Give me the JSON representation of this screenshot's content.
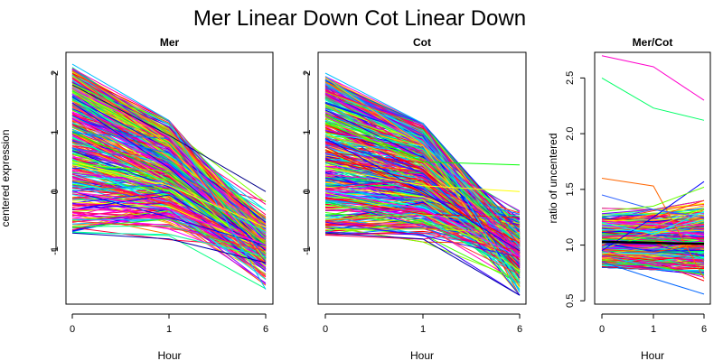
{
  "title": "Mer Linear Down Cot Linear Down",
  "chart_data": [
    {
      "type": "line",
      "title": "Mer",
      "xlabel": "Hour",
      "ylabel": "centered expression",
      "x": [
        0,
        1,
        6
      ],
      "x_tick_labels": [
        "0",
        "1",
        "6"
      ],
      "y_ticks": [
        -1,
        0,
        1,
        2
      ],
      "ylim": [
        -1.9,
        2.35
      ],
      "grid": false,
      "series_count_estimate": 400,
      "series_summary": {
        "hour_0_range": [
          -0.7,
          2.15
        ],
        "hour_1_range": [
          -0.95,
          1.2
        ],
        "hour_6_range": [
          -1.65,
          0.0
        ]
      },
      "example_series": [
        {
          "values": [
            2.15,
            1.2,
            -1.65
          ],
          "color": "#00bfff"
        },
        {
          "values": [
            1.9,
            0.9,
            -1.2
          ],
          "color": "#ff0066"
        },
        {
          "values": [
            1.5,
            0.4,
            -1.0
          ],
          "color": "#0000ff"
        },
        {
          "values": [
            1.0,
            0.3,
            -0.9
          ],
          "color": "#00ff00"
        },
        {
          "values": [
            0.5,
            0.1,
            -0.6
          ],
          "color": "#ffff00"
        },
        {
          "values": [
            0.0,
            -0.3,
            -0.9
          ],
          "color": "#ff00ff"
        },
        {
          "values": [
            -0.5,
            -0.6,
            -1.0
          ],
          "color": "#ff3333"
        },
        {
          "values": [
            -0.7,
            -0.8,
            -1.2
          ],
          "color": "#0000aa"
        },
        {
          "values": [
            1.8,
            0.95,
            0.0
          ],
          "color": "#000088"
        }
      ]
    },
    {
      "type": "line",
      "title": "Cot",
      "xlabel": "Hour",
      "ylabel": "",
      "x": [
        0,
        1,
        6
      ],
      "x_tick_labels": [
        "0",
        "1",
        "6"
      ],
      "y_ticks": [
        -1,
        0,
        1,
        2
      ],
      "ylim": [
        -1.9,
        2.35
      ],
      "grid": false,
      "series_count_estimate": 400,
      "series_summary": {
        "hour_0_range": [
          -0.75,
          2.0
        ],
        "hour_1_range": [
          -0.85,
          1.15
        ],
        "hour_6_range": [
          -1.75,
          0.45
        ]
      },
      "example_series": [
        {
          "values": [
            2.0,
            1.15,
            -1.7
          ],
          "color": "#00bfff"
        },
        {
          "values": [
            1.7,
            1.1,
            -0.9
          ],
          "color": "#ff0066"
        },
        {
          "values": [
            1.3,
            0.5,
            0.45
          ],
          "color": "#00ff00"
        },
        {
          "values": [
            0.9,
            0.0,
            -1.0
          ],
          "color": "#0000ff"
        },
        {
          "values": [
            0.4,
            0.1,
            0.0
          ],
          "color": "#ffff00"
        },
        {
          "values": [
            0.0,
            -0.3,
            -1.1
          ],
          "color": "#ff00ff"
        },
        {
          "values": [
            -0.5,
            -0.6,
            -1.4
          ],
          "color": "#ff3333"
        },
        {
          "values": [
            -0.7,
            -0.8,
            -1.75
          ],
          "color": "#0000aa"
        }
      ]
    },
    {
      "type": "line",
      "title": "Mer/Cot",
      "xlabel": "Hour",
      "ylabel": "ratio of uncentered",
      "x": [
        0,
        1,
        6
      ],
      "x_tick_labels": [
        "0",
        "1",
        "6"
      ],
      "y_ticks": [
        0.5,
        1.0,
        1.5,
        2.0,
        2.5
      ],
      "y_tick_labels": [
        "0.5",
        "1.0",
        "1.5",
        "2.0",
        "2.5"
      ],
      "ylim": [
        0.47,
        2.73
      ],
      "grid": false,
      "series_count_estimate": 400,
      "mean_line": {
        "values": [
          1.03,
          1.02,
          1.01
        ],
        "color": "#000000"
      },
      "example_series": [
        {
          "values": [
            2.7,
            2.6,
            2.3
          ],
          "color": "#ff00cc"
        },
        {
          "values": [
            2.5,
            2.23,
            2.12
          ],
          "color": "#00ff66"
        },
        {
          "values": [
            1.6,
            1.53,
            0.7
          ],
          "color": "#ff6600"
        },
        {
          "values": [
            1.45,
            1.32,
            1.25
          ],
          "color": "#3366ff"
        },
        {
          "values": [
            0.95,
            1.25,
            1.57
          ],
          "color": "#0000ff"
        },
        {
          "values": [
            1.3,
            1.35,
            1.52
          ],
          "color": "#66ff00"
        },
        {
          "values": [
            0.85,
            0.7,
            0.56
          ],
          "color": "#0066ff"
        },
        {
          "values": [
            1.2,
            1.1,
            1.3
          ],
          "color": "#00ffff"
        },
        {
          "values": [
            0.9,
            0.85,
            0.8
          ],
          "color": "#ff0066"
        }
      ]
    }
  ]
}
